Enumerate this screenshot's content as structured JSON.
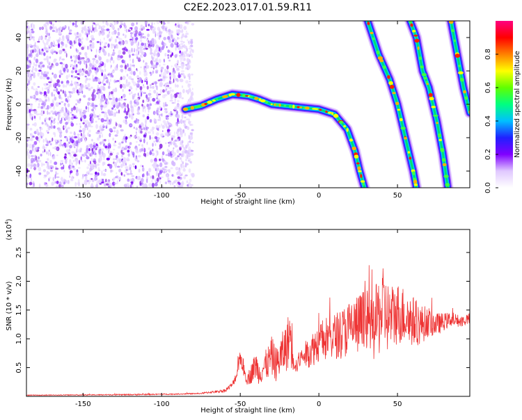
{
  "title": "C2E2.2023.017.01.59.R11",
  "chart_data": [
    {
      "type": "heatmap",
      "xlabel": "Height of straight line (km)",
      "ylabel": "Frequency (Hz)",
      "xlim": [
        -186,
        96
      ],
      "ylim": [
        -50,
        50
      ],
      "xticks": [
        -150,
        -100,
        -50,
        0,
        50
      ],
      "yticks": [
        -40,
        -20,
        0,
        20,
        40
      ],
      "grid": false,
      "colorbar": {
        "label": "Normalized spectral amplitude",
        "range": [
          0,
          1
        ],
        "ticks": [
          "0.0",
          "0.2",
          "0.4",
          "0.6",
          "0.8"
        ],
        "colors": [
          "#ffffff",
          "#e0c8ff",
          "#8000ff",
          "#2020ff",
          "#00c0ff",
          "#00ff80",
          "#60ff00",
          "#ffff00",
          "#ff8000",
          "#ff0000",
          "#ff0080"
        ]
      },
      "noise_region": {
        "x_range": [
          -186,
          -80
        ],
        "freq_range": [
          -50,
          50
        ]
      },
      "traces": [
        {
          "points": [
            [
              -85,
              -3
            ],
            [
              -75,
              -1
            ],
            [
              -65,
              3
            ],
            [
              -55,
              6
            ],
            [
              -45,
              5
            ],
            [
              -38,
              3
            ],
            [
              -30,
              0
            ],
            [
              -20,
              -1
            ],
            [
              -10,
              -2
            ],
            [
              0,
              -3
            ],
            [
              10,
              -6
            ],
            [
              18,
              -15
            ],
            [
              23,
              -28
            ],
            [
              26,
              -40
            ],
            [
              29,
              -50
            ]
          ]
        },
        {
          "points": [
            [
              31,
              50
            ],
            [
              38,
              30
            ],
            [
              45,
              15
            ],
            [
              50,
              0
            ],
            [
              55,
              -20
            ],
            [
              60,
              -40
            ],
            [
              62,
              -50
            ]
          ]
        },
        {
          "points": [
            [
              58,
              50
            ],
            [
              62,
              40
            ],
            [
              66,
              20
            ],
            [
              70,
              10
            ],
            [
              75,
              -10
            ],
            [
              79,
              -30
            ],
            [
              82,
              -50
            ]
          ]
        },
        {
          "points": [
            [
              84,
              50
            ],
            [
              88,
              30
            ],
            [
              92,
              10
            ],
            [
              96,
              -5
            ]
          ]
        }
      ]
    },
    {
      "type": "line",
      "xlabel": "Height of straight line (km)",
      "ylabel": "SNR (10 * v/v)",
      "y_multiplier": "(x10",
      "y_multiplier_exp": "4",
      "y_multiplier_close": ")",
      "xlim": [
        -186,
        96
      ],
      "ylim": [
        0,
        2.9
      ],
      "xticks": [
        -150,
        -100,
        -50,
        0,
        50
      ],
      "yticks": [
        0.5,
        1.0,
        1.5,
        2.0,
        2.5
      ],
      "ytick_labels": [
        "0.5",
        "1.0",
        "1.5",
        "2.0",
        "2.5"
      ],
      "grid": false,
      "series": [
        {
          "color": "#ee3333",
          "x": [
            -186,
            -120,
            -90,
            -75,
            -70,
            -65,
            -60,
            -55,
            -52,
            -50,
            -48,
            -46,
            -44,
            -42,
            -40,
            -38,
            -35,
            -32,
            -30,
            -27,
            -25,
            -22,
            -20,
            -18,
            -16,
            -14,
            -12,
            -10,
            -5,
            0,
            5,
            10,
            15,
            20,
            25,
            30,
            35,
            38,
            40,
            42,
            45,
            50,
            55,
            60,
            65,
            70,
            75,
            80,
            85,
            90,
            96
          ],
          "y": [
            0.02,
            0.03,
            0.04,
            0.05,
            0.07,
            0.08,
            0.1,
            0.2,
            0.4,
            0.7,
            0.5,
            0.3,
            0.35,
            0.45,
            0.55,
            0.4,
            0.5,
            0.6,
            0.7,
            0.55,
            0.65,
            0.8,
            0.9,
            1.1,
            0.7,
            0.5,
            0.65,
            0.7,
            0.8,
            0.95,
            1.0,
            1.05,
            1.1,
            1.2,
            1.25,
            1.3,
            1.2,
            1.4,
            1.5,
            1.45,
            1.35,
            1.45,
            1.4,
            1.3,
            1.25,
            1.3,
            1.25,
            1.3,
            1.35,
            1.3,
            1.35
          ],
          "spread": [
            0.005,
            0.01,
            0.01,
            0.01,
            0.02,
            0.02,
            0.03,
            0.05,
            0.1,
            0.15,
            0.15,
            0.1,
            0.15,
            0.2,
            0.25,
            0.2,
            0.25,
            0.3,
            0.35,
            0.3,
            0.35,
            0.4,
            0.45,
            0.6,
            0.3,
            0.1,
            0.15,
            0.2,
            0.3,
            0.35,
            0.4,
            0.4,
            0.45,
            0.5,
            0.55,
            0.6,
            0.6,
            0.7,
            0.8,
            0.7,
            0.6,
            0.55,
            0.5,
            0.45,
            0.35,
            0.25,
            0.2,
            0.15,
            0.12,
            0.1,
            0.1
          ]
        }
      ]
    }
  ]
}
